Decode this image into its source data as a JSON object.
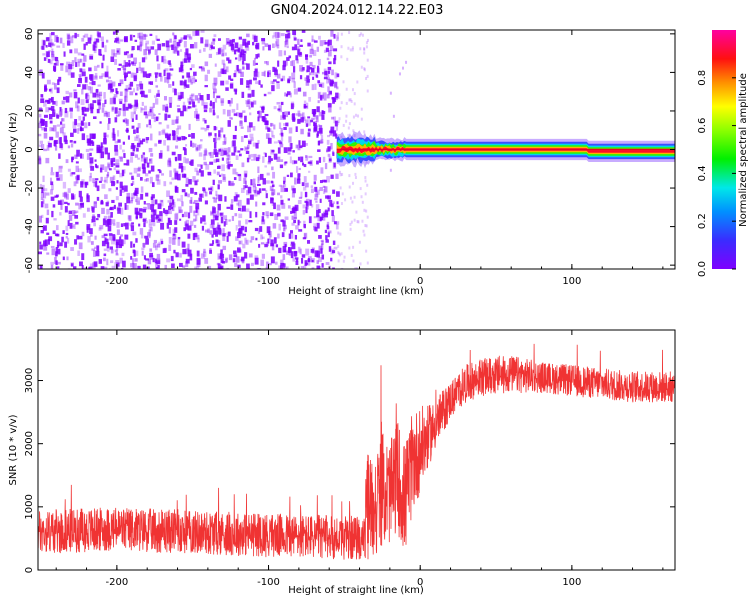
{
  "title": "GN04.2024.012.14.22.E03",
  "colors": {
    "snr_line": "#f03333",
    "scatter_noise": "#7f00ff",
    "band_core": "#e8002a",
    "background": "#ffffff"
  },
  "chart_data": [
    {
      "type": "heatmap",
      "xlabel": "Height of straight line (km)",
      "ylabel": "Frequency (Hz)",
      "xlim": [
        -252,
        168
      ],
      "ylim": [
        -62,
        62
      ],
      "xticks": [
        -200,
        -100,
        0,
        100
      ],
      "yticks": [
        -60,
        -40,
        -20,
        0,
        20,
        40,
        60
      ],
      "grid": false,
      "colorbar": {
        "label": "Normalized spectral amplitude",
        "range": [
          0,
          1
        ],
        "ticks": [
          0.0,
          0.2,
          0.4,
          0.6,
          0.8
        ],
        "colormap": "rainbow (violet to magenta)"
      },
      "regions": [
        {
          "x_range": [
            -252,
            -55
          ],
          "description": "broadband noise",
          "amplitude": 0.1,
          "y_range": [
            -62,
            62
          ]
        },
        {
          "x_range": [
            -55,
            -35
          ],
          "description": "sparse noise",
          "amplitude": 0.05,
          "y_range": [
            -62,
            62
          ]
        },
        {
          "x_range": [
            -55,
            168
          ],
          "description": "signal band",
          "center_hz": 0,
          "half_width_hz": 3,
          "peak_amplitude": 1.0
        }
      ]
    },
    {
      "type": "line",
      "xlabel": "Height of straight line (km)",
      "ylabel": "SNR (10 * v/v)",
      "xlim": [
        -252,
        168
      ],
      "ylim": [
        0,
        3800
      ],
      "xticks": [
        -200,
        -100,
        0,
        100
      ],
      "yticks": [
        0,
        1000,
        2000,
        3000
      ],
      "grid": false,
      "series": [
        {
          "profile_x": [
            -252,
            -200,
            -150,
            -100,
            -60,
            -37,
            -35,
            -30,
            -25,
            -20,
            -15,
            -10,
            -5,
            0,
            5,
            10,
            20,
            30,
            40,
            60,
            80,
            100,
            120,
            140,
            168
          ],
          "profile_mean": [
            600,
            650,
            600,
            550,
            520,
            500,
            1000,
            1000,
            1300,
            1200,
            1500,
            1100,
            1700,
            1900,
            2100,
            2300,
            2700,
            2950,
            3050,
            3100,
            3050,
            3000,
            2950,
            2900,
            2900
          ],
          "profile_spread": [
            350,
            350,
            350,
            350,
            350,
            350,
            900,
            800,
            900,
            800,
            900,
            900,
            800,
            700,
            500,
            400,
            300,
            300,
            300,
            300,
            250,
            250,
            250,
            250,
            250
          ]
        }
      ]
    }
  ]
}
